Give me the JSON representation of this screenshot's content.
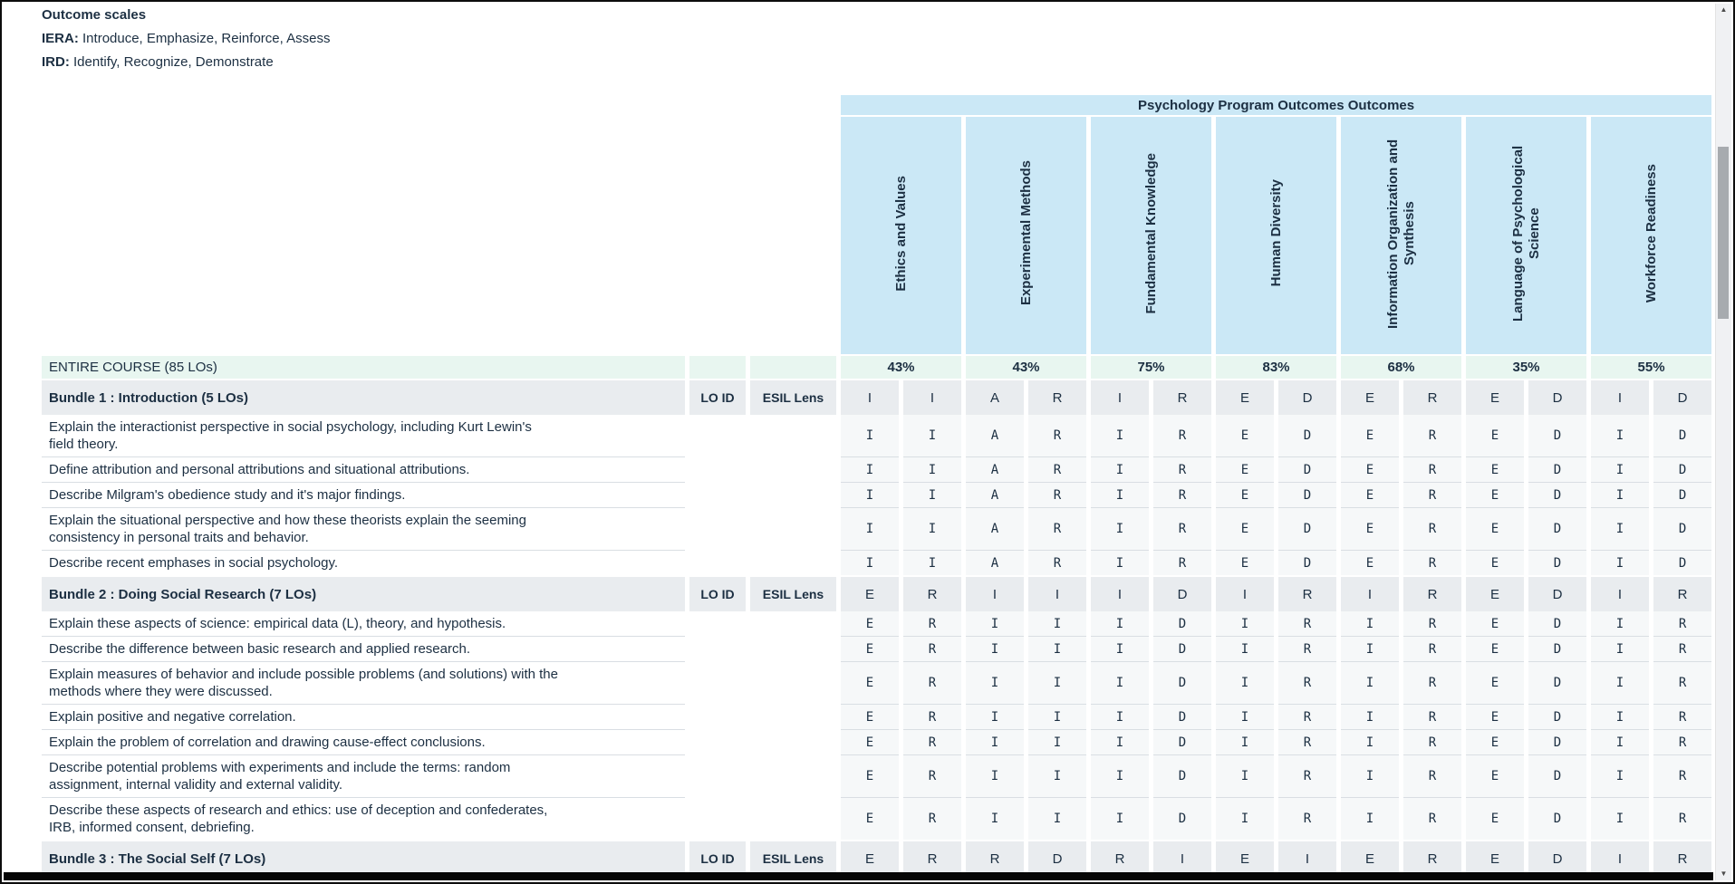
{
  "legend": {
    "title": "Outcome scales",
    "scales": [
      {
        "abbr": "IERA:",
        "desc": "Introduce, Emphasize, Reinforce, Assess"
      },
      {
        "abbr": "IRD:",
        "desc": "Identify, Recognize, Demonstrate"
      }
    ]
  },
  "matrix": {
    "banner": "Psychology Program Outcomes Outcomes",
    "outcome_columns": [
      "Ethics and Values",
      "Experimental Methods",
      "Fundamental Knowledge",
      "Human Diversity",
      "Information Organization and Synthesis",
      "Language of Psychological Science",
      "Workforce Readiness"
    ],
    "sub_headers": {
      "lo_id": "LO ID",
      "esil_lens": "ESIL Lens"
    },
    "entire_course": {
      "label": "ENTIRE COURSE (85 LOs)",
      "percentages": [
        "43%",
        "43%",
        "75%",
        "83%",
        "68%",
        "35%",
        "55%"
      ]
    },
    "bundles": [
      {
        "label": "Bundle 1 : Introduction (5 LOs)",
        "ratings": [
          "I",
          "I",
          "A",
          "R",
          "I",
          "R",
          "E",
          "D",
          "E",
          "R",
          "E",
          "D",
          "I",
          "D"
        ],
        "los": [
          "Explain the interactionist perspective in social psychology, including Kurt Lewin's field theory.",
          "Define attribution and personal attributions and situational attributions.",
          "Describe Milgram's obedience study and it's major findings.",
          "Explain the situational perspective and how these theorists explain the seeming consistency in personal traits and behavior.",
          "Describe recent emphases in social psychology."
        ]
      },
      {
        "label": "Bundle 2 : Doing Social Research (7 LOs)",
        "ratings": [
          "E",
          "R",
          "I",
          "I",
          "I",
          "D",
          "I",
          "R",
          "I",
          "R",
          "E",
          "D",
          "I",
          "R"
        ],
        "los": [
          "Explain these aspects of science: empirical data (L), theory, and hypothesis.",
          "Describe the difference between basic research and applied research.",
          "Explain measures of behavior and include possible problems (and solutions) with the methods where they were discussed.",
          "Explain positive and negative correlation.",
          "Explain the problem of correlation and drawing cause-effect conclusions.",
          "Describe potential problems with experiments and include the terms: random assignment, internal validity and external validity.",
          "Describe these aspects of research and ethics: use of deception and confederates, IRB, informed consent, debriefing."
        ]
      },
      {
        "label": "Bundle 3 : The Social Self (7 LOs)",
        "ratings": [
          "E",
          "R",
          "R",
          "D",
          "R",
          "I",
          "E",
          "I",
          "E",
          "R",
          "E",
          "D",
          "I",
          "R"
        ],
        "los": []
      }
    ]
  },
  "scrollbar": {
    "up_glyph": "▲",
    "down_glyph": "▼"
  },
  "colors": {
    "header_blue": "#cbe8f6",
    "mint_green": "#e8f6f0",
    "bundle_gray": "#e9ecef",
    "lo_rating_bg": "#f6f8f9",
    "separator": "#d9dee3",
    "text_dark": "#1c2f42"
  }
}
